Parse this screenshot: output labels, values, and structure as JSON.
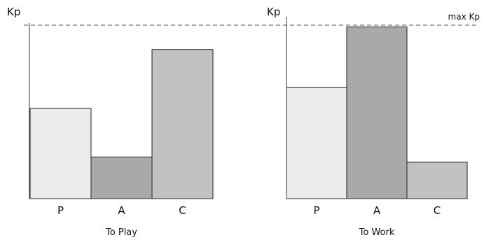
{
  "reference_line": {
    "label": "max Kp"
  },
  "chart_data": [
    {
      "type": "bar",
      "title": "To Play",
      "ylabel": "Kp",
      "xlabel": "",
      "categories": [
        "P",
        "A",
        "C"
      ],
      "values": [
        0.52,
        0.24,
        0.86
      ],
      "ylim": [
        0,
        1
      ],
      "grid": false,
      "reference_line": {
        "label": "max Kp",
        "value": 1.0,
        "style": "dashed"
      },
      "colors": [
        "#ebebeb",
        "#a9a9a9",
        "#c2c2c2"
      ]
    },
    {
      "type": "bar",
      "title": "To Work",
      "ylabel": "Kp",
      "xlabel": "",
      "categories": [
        "P",
        "A",
        "C"
      ],
      "values": [
        0.64,
        0.99,
        0.21
      ],
      "ylim": [
        0,
        1
      ],
      "grid": false,
      "reference_line": {
        "label": "max Kp",
        "value": 1.0,
        "style": "dashed"
      },
      "colors": [
        "#ebebeb",
        "#a9a9a9",
        "#c2c2c2"
      ]
    }
  ]
}
